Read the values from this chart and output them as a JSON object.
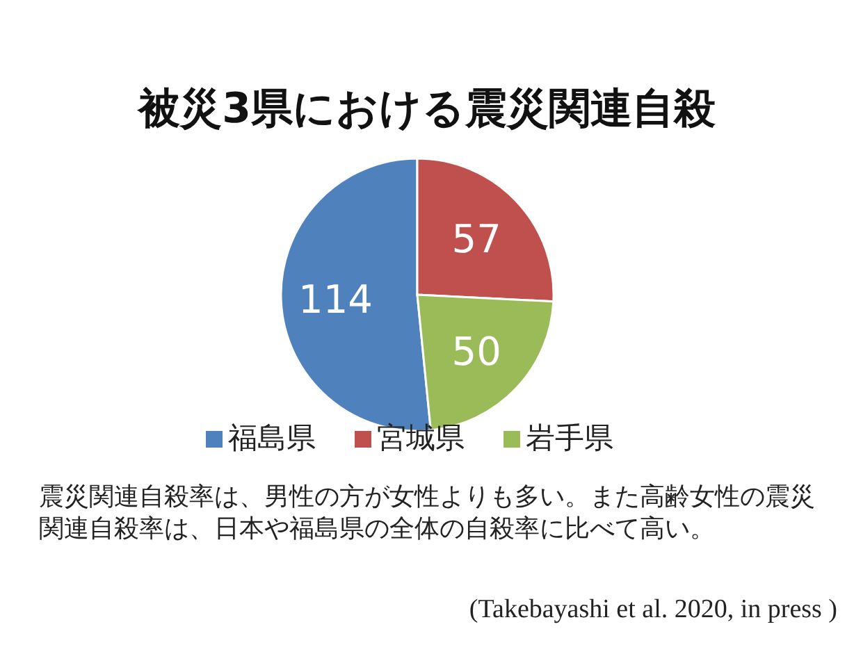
{
  "chart_data": {
    "type": "pie",
    "title": "被災3県における震災関連自殺",
    "categories": [
      "福島県",
      "宮城県",
      "岩手県"
    ],
    "values": [
      114,
      57,
      50
    ],
    "colors": [
      "#4f81bd",
      "#c0504d",
      "#9bbb59"
    ],
    "data_labels": true,
    "legend": "bottom",
    "annotations": [
      "震災関連自殺率は、男性の方が女性よりも多い。また高齢女性の震災関連自殺率は、日本や福島県の全体の自殺率に比べて高い。",
      "(Takebayashi  et al. 2020, in press )"
    ]
  }
}
